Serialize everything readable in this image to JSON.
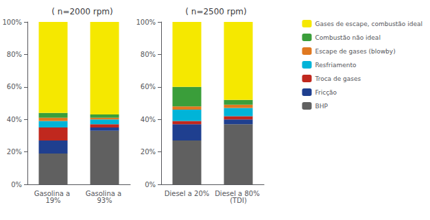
{
  "chart_data": [
    {
      "type": "bar",
      "title": "( n=2000 rpm)",
      "stacked": true,
      "grid": false,
      "legend": "right",
      "categories": [
        "Gasolina a 19%",
        "Gasolina a 93%"
      ],
      "series": [
        {
          "name": "BHP",
          "color": "#606060",
          "values": [
            19,
            33
          ]
        },
        {
          "name": "Fricção",
          "color": "#1f3f8f",
          "values": [
            8,
            2
          ]
        },
        {
          "name": "Troca de gases",
          "color": "#c0281e",
          "values": [
            8,
            2
          ]
        },
        {
          "name": "Resfriamento",
          "color": "#00b4d8",
          "values": [
            4,
            3
          ]
        },
        {
          "name": "Escape de gases (blowby)",
          "color": "#e07820",
          "values": [
            2,
            1
          ]
        },
        {
          "name": "Combustão não ideal",
          "color": "#3a9e3a",
          "values": [
            3,
            2
          ]
        },
        {
          "name": "Gases de escape, combustão ideal",
          "color": "#f5e800",
          "values": [
            56,
            57
          ]
        }
      ],
      "ylim": [
        0,
        100
      ],
      "yticks": [
        {
          "value": 0,
          "label": "0%"
        },
        {
          "value": 20,
          "label": "20%"
        },
        {
          "value": 40,
          "label": "40%"
        },
        {
          "value": 60,
          "label": "60%"
        },
        {
          "value": 80,
          "label": "80%"
        },
        {
          "value": 100,
          "label": "100%"
        }
      ]
    },
    {
      "type": "bar",
      "title": "( n=2500 rpm)",
      "stacked": true,
      "grid": false,
      "legend": "right",
      "categories": [
        "Diesel a 20%",
        "Diesel a 80% (TDI)"
      ],
      "series": [
        {
          "name": "BHP",
          "color": "#606060",
          "values": [
            27,
            37
          ]
        },
        {
          "name": "Fricção",
          "color": "#1f3f8f",
          "values": [
            10,
            3
          ]
        },
        {
          "name": "Troca de gases",
          "color": "#c0281e",
          "values": [
            2,
            2
          ]
        },
        {
          "name": "Resfriamento",
          "color": "#00b4d8",
          "values": [
            7,
            5
          ]
        },
        {
          "name": "Escape de gases (blowby)",
          "color": "#e07820",
          "values": [
            2,
            2
          ]
        },
        {
          "name": "Combustão não ideal",
          "color": "#3a9e3a",
          "values": [
            12,
            3
          ]
        },
        {
          "name": "Gases de escape, combustão ideal",
          "color": "#f5e800",
          "values": [
            40,
            48
          ]
        }
      ],
      "ylim": [
        0,
        100
      ],
      "yticks": [
        {
          "value": 0,
          "label": "0%"
        },
        {
          "value": 20,
          "label": "20%"
        },
        {
          "value": 40,
          "label": "40%"
        },
        {
          "value": 60,
          "label": "60%"
        },
        {
          "value": 80,
          "label": "80%"
        },
        {
          "value": 100,
          "label": "100%"
        }
      ]
    }
  ]
}
